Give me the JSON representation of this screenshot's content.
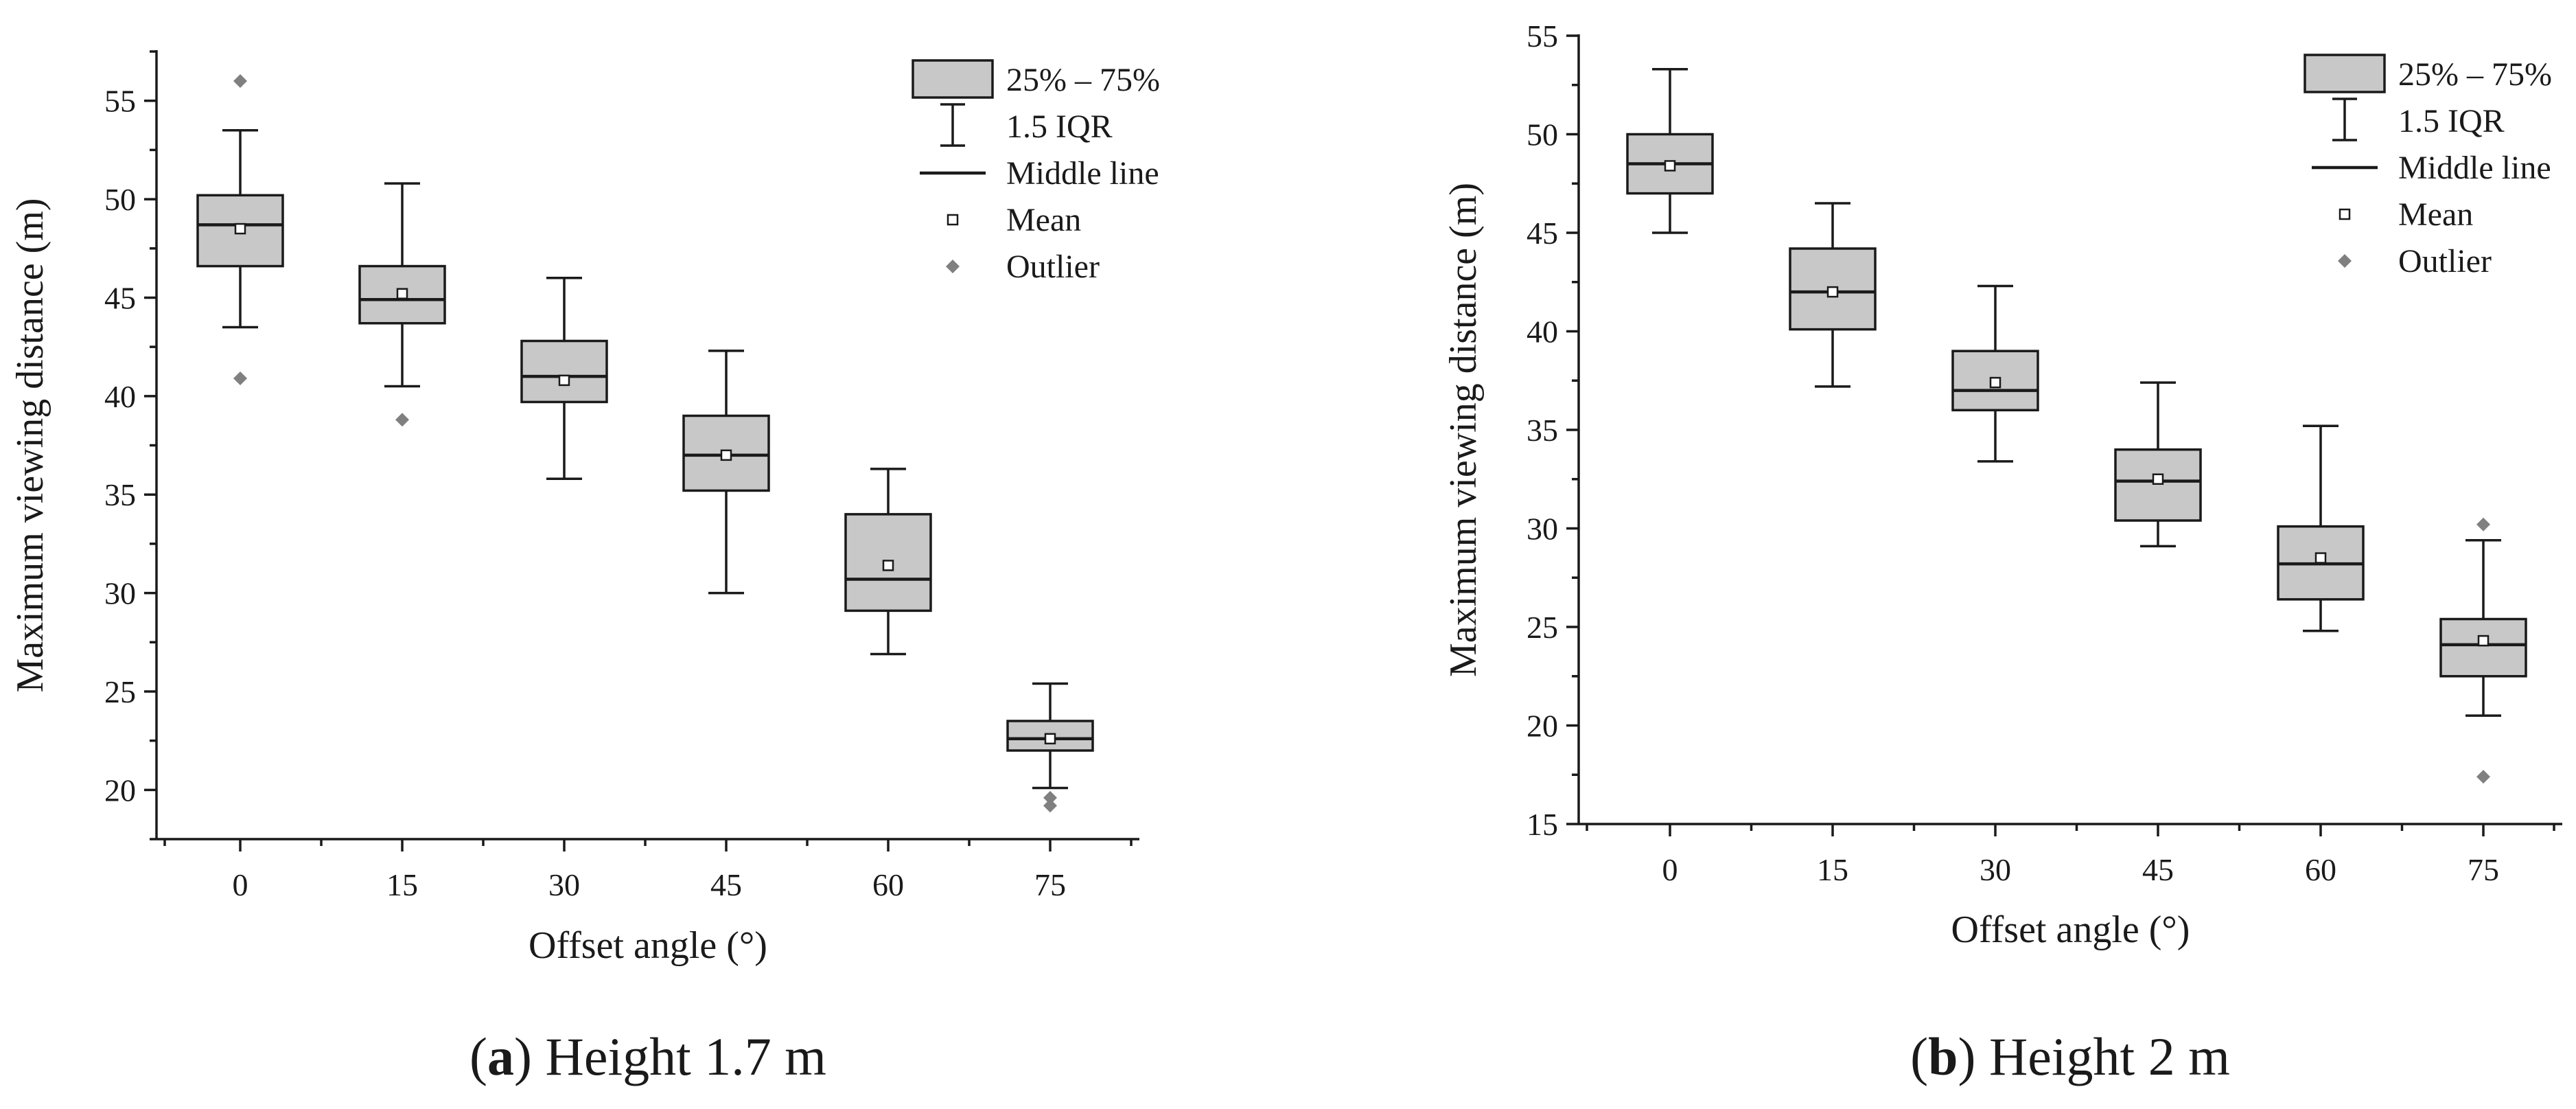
{
  "chart_data": [
    {
      "type": "box",
      "title": "Height 1.7 m",
      "caption_letter": "a",
      "xlabel": "Offset angle (°)",
      "ylabel": "Maximum viewing distance (m)",
      "ylim": [
        17.5,
        57.5
      ],
      "yticks": [
        20,
        25,
        30,
        35,
        40,
        45,
        50,
        55
      ],
      "categories": [
        "0",
        "15",
        "30",
        "45",
        "60",
        "75"
      ],
      "boxes": [
        {
          "category": "0",
          "whisker_low": 43.5,
          "q1": 46.6,
          "median": 48.7,
          "q3": 50.2,
          "whisker_high": 53.5,
          "mean": 48.5,
          "outliers": [
            56.0,
            40.9
          ]
        },
        {
          "category": "15",
          "whisker_low": 40.5,
          "q1": 43.7,
          "median": 44.9,
          "q3": 46.6,
          "whisker_high": 50.8,
          "mean": 45.2,
          "outliers": [
            38.8
          ]
        },
        {
          "category": "30",
          "whisker_low": 35.8,
          "q1": 39.7,
          "median": 41.0,
          "q3": 42.8,
          "whisker_high": 46.0,
          "mean": 40.8,
          "outliers": []
        },
        {
          "category": "45",
          "whisker_low": 30.0,
          "q1": 35.2,
          "median": 37.0,
          "q3": 39.0,
          "whisker_high": 42.3,
          "mean": 37.0,
          "outliers": []
        },
        {
          "category": "60",
          "whisker_low": 26.9,
          "q1": 29.1,
          "median": 30.7,
          "q3": 34.0,
          "whisker_high": 36.3,
          "mean": 31.4,
          "outliers": []
        },
        {
          "category": "75",
          "whisker_low": 20.1,
          "q1": 22.0,
          "median": 22.6,
          "q3": 23.5,
          "whisker_high": 25.4,
          "mean": 22.6,
          "outliers": [
            19.6,
            19.2
          ]
        }
      ],
      "legend": [
        "25% – 75%",
        "1.5 IQR",
        "Middle line",
        "Mean",
        "Outlier"
      ]
    },
    {
      "type": "box",
      "title": "Height 2 m",
      "caption_letter": "b",
      "xlabel": "Offset angle (°)",
      "ylabel": "Maximum viewing distance (m)",
      "ylim": [
        15,
        55
      ],
      "yticks": [
        15,
        20,
        25,
        30,
        35,
        40,
        45,
        50,
        55
      ],
      "categories": [
        "0",
        "15",
        "30",
        "45",
        "60",
        "75"
      ],
      "boxes": [
        {
          "category": "0",
          "whisker_low": 45.0,
          "q1": 47.0,
          "median": 48.5,
          "q3": 50.0,
          "whisker_high": 53.3,
          "mean": 48.4,
          "outliers": []
        },
        {
          "category": "15",
          "whisker_low": 37.2,
          "q1": 40.1,
          "median": 42.0,
          "q3": 44.2,
          "whisker_high": 46.5,
          "mean": 42.0,
          "outliers": []
        },
        {
          "category": "30",
          "whisker_low": 33.4,
          "q1": 36.0,
          "median": 37.0,
          "q3": 39.0,
          "whisker_high": 42.3,
          "mean": 37.4,
          "outliers": []
        },
        {
          "category": "45",
          "whisker_low": 29.1,
          "q1": 30.4,
          "median": 32.4,
          "q3": 34.0,
          "whisker_high": 37.4,
          "mean": 32.5,
          "outliers": []
        },
        {
          "category": "60",
          "whisker_low": 24.8,
          "q1": 26.4,
          "median": 28.2,
          "q3": 30.1,
          "whisker_high": 35.2,
          "mean": 28.5,
          "outliers": []
        },
        {
          "category": "75",
          "whisker_low": 20.5,
          "q1": 22.5,
          "median": 24.1,
          "q3": 25.4,
          "whisker_high": 29.4,
          "mean": 24.3,
          "outliers": [
            30.2,
            17.4
          ]
        }
      ],
      "legend": [
        "25% – 75%",
        "1.5 IQR",
        "Middle line",
        "Mean",
        "Outlier"
      ]
    }
  ],
  "colors": {
    "box_fill": "#c8c8c8",
    "stroke": "#1a1a1a",
    "outlier": "#808080",
    "mean_fill": "#ffffff"
  }
}
